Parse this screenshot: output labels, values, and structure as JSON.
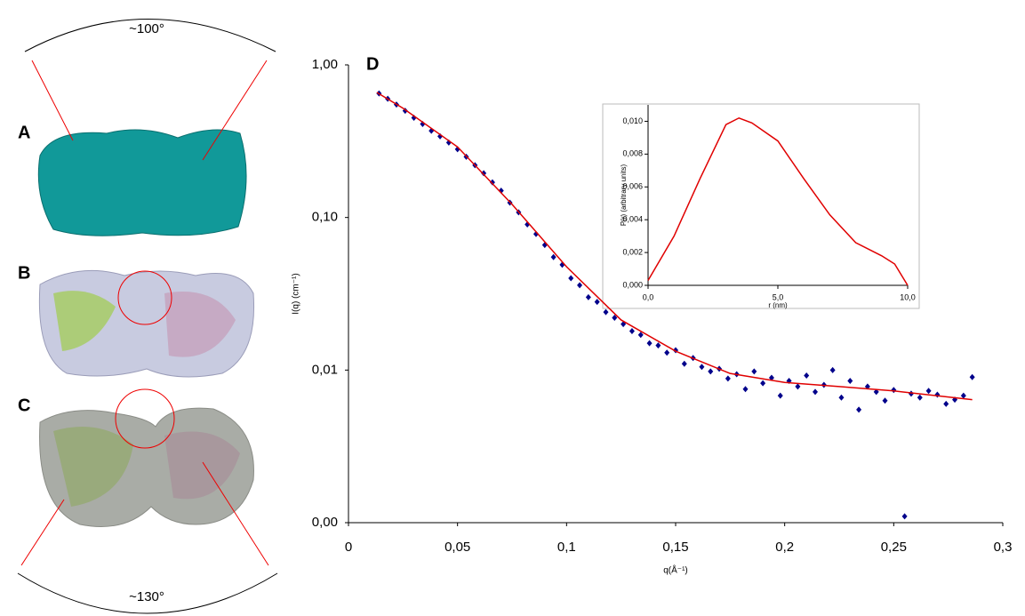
{
  "panels": {
    "top_angle": "~100°",
    "bottom_angle": "~130°",
    "labels": [
      "A",
      "B",
      "C"
    ]
  },
  "chart_data": [
    {
      "type": "scatter",
      "title": "D",
      "x_label": "q(Å⁻¹)",
      "y_label": "I(q) (cm⁻¹)",
      "log_y": true,
      "xlim": [
        0,
        0.3
      ],
      "xticks": [
        0,
        {
          "value": 0.05,
          "label": "0,05"
        },
        {
          "value": 0.1,
          "label": "0,1"
        },
        {
          "value": 0.15,
          "label": "0,15"
        },
        {
          "value": 0.2,
          "label": "0,2"
        },
        {
          "value": 0.25,
          "label": "0,25"
        },
        {
          "value": 0.3,
          "label": "0,3"
        }
      ],
      "ylim": [
        0.001,
        1
      ],
      "yticks": [
        {
          "value": 0.001,
          "label": "0,00"
        },
        {
          "value": 0.01,
          "label": "0,01"
        },
        {
          "value": 0.1,
          "label": "0,10"
        },
        {
          "value": 1,
          "label": "1,00"
        }
      ],
      "series": [
        {
          "type": "scatter",
          "color": "#00008b",
          "x": [
            0.014,
            0.018,
            0.022,
            0.026,
            0.03,
            0.034,
            0.038,
            0.042,
            0.046,
            0.05,
            0.054,
            0.058,
            0.062,
            0.066,
            0.07,
            0.074,
            0.078,
            0.082,
            0.086,
            0.09,
            0.094,
            0.098,
            0.102,
            0.106,
            0.11,
            0.114,
            0.118,
            0.122,
            0.126,
            0.13,
            0.134,
            0.138,
            0.142,
            0.146,
            0.15,
            0.154,
            0.158,
            0.162,
            0.166,
            0.17,
            0.174,
            0.178,
            0.182,
            0.186,
            0.19,
            0.194,
            0.198,
            0.202,
            0.206,
            0.21,
            0.214,
            0.218,
            0.222,
            0.226,
            0.23,
            0.234,
            0.238,
            0.242,
            0.246,
            0.25,
            0.255,
            0.258,
            0.262,
            0.266,
            0.27,
            0.274,
            0.278,
            0.282,
            0.286
          ],
          "values": [
            0.65,
            0.6,
            0.55,
            0.5,
            0.45,
            0.41,
            0.37,
            0.34,
            0.31,
            0.28,
            0.25,
            0.22,
            0.195,
            0.17,
            0.15,
            0.125,
            0.108,
            0.09,
            0.078,
            0.066,
            0.055,
            0.049,
            0.04,
            0.036,
            0.03,
            0.028,
            0.024,
            0.022,
            0.02,
            0.018,
            0.017,
            0.015,
            0.0145,
            0.013,
            0.0135,
            0.011,
            0.012,
            0.0105,
            0.0098,
            0.0102,
            0.0088,
            0.0094,
            0.0075,
            0.0098,
            0.0082,
            0.0089,
            0.0068,
            0.0085,
            0.0078,
            0.0092,
            0.0072,
            0.008,
            0.01,
            0.0066,
            0.0085,
            0.0055,
            0.0078,
            0.0072,
            0.0063,
            0.0074,
            0.0011,
            0.007,
            0.0066,
            0.0073,
            0.0069,
            0.006,
            0.0064,
            0.0068,
            0.009
          ]
        },
        {
          "type": "line",
          "color": "#e00000",
          "x": [
            0.013,
            0.025,
            0.05,
            0.075,
            0.1,
            0.125,
            0.15,
            0.175,
            0.2,
            0.225,
            0.25,
            0.286
          ],
          "values": [
            0.66,
            0.52,
            0.29,
            0.122,
            0.0475,
            0.0213,
            0.0133,
            0.0095,
            0.0083,
            0.0078,
            0.0073,
            0.0064
          ]
        }
      ]
    },
    {
      "type": "line",
      "x_label": "r (nm)",
      "y_label": "P(r) (arbitrary units)",
      "xlim": [
        0,
        10
      ],
      "xticks": [
        {
          "value": 0,
          "label": "0,0"
        },
        {
          "value": 5,
          "label": "5,0"
        },
        {
          "value": 10,
          "label": "10,0"
        }
      ],
      "ylim": [
        0,
        0.011
      ],
      "yticks": [
        {
          "value": 0,
          "label": "0,000"
        },
        {
          "value": 0.002,
          "label": "0,002"
        },
        {
          "value": 0.004,
          "label": "0,004"
        },
        {
          "value": 0.006,
          "label": "0,006"
        },
        {
          "value": 0.008,
          "label": "0,008"
        },
        {
          "value": 0.01,
          "label": "0,010"
        }
      ],
      "series": [
        {
          "type": "line",
          "color": "#e00000",
          "x": [
            0,
            1,
            2,
            3,
            3.5,
            4,
            5,
            6,
            7,
            8,
            9,
            9.5,
            10
          ],
          "values": [
            0.0003,
            0.003,
            0.0065,
            0.0098,
            0.0102,
            0.0099,
            0.0088,
            0.0065,
            0.0043,
            0.0026,
            0.0018,
            0.0013,
            0
          ]
        }
      ]
    }
  ]
}
